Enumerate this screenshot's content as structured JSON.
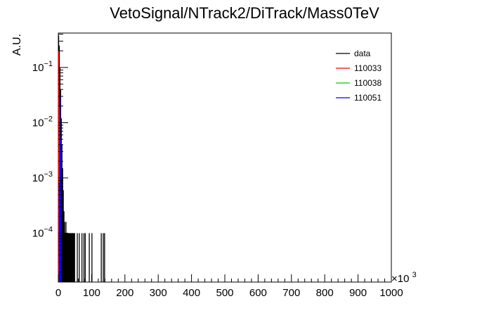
{
  "chart_data": {
    "type": "bar",
    "title": "VetoSignal/NTrack2/DiTrack/Mass0TeV",
    "xlabel": "",
    "ylabel": "A.U.",
    "x_multiplier_label": "×10",
    "x_multiplier_exponent": "3",
    "xlim": [
      0,
      1000
    ],
    "ylim": [
      1.3e-05,
      0.42
    ],
    "yscale": "log",
    "grid": false,
    "legend_position": "top-right",
    "x_tick_labels": [
      "0",
      "100",
      "200",
      "300",
      "400",
      "500",
      "600",
      "700",
      "800",
      "900",
      "1000"
    ],
    "y_tick_labels": [
      {
        "base": "10",
        "exp": "−1",
        "value": 0.1
      },
      {
        "base": "10",
        "exp": "−2",
        "value": 0.01
      },
      {
        "base": "10",
        "exp": "−3",
        "value": 0.001
      },
      {
        "base": "10",
        "exp": "−4",
        "value": 0.0001
      }
    ],
    "series": [
      {
        "name": "data",
        "color": "#000000",
        "bins": [
          {
            "x": 1,
            "y": 0.38
          },
          {
            "x": 3,
            "y": 0.25
          },
          {
            "x": 5,
            "y": 0.1
          },
          {
            "x": 7,
            "y": 0.04
          },
          {
            "x": 9,
            "y": 0.012
          },
          {
            "x": 11,
            "y": 0.004
          },
          {
            "x": 13,
            "y": 0.0015
          },
          {
            "x": 15,
            "y": 0.0006
          },
          {
            "x": 17,
            "y": 0.00025
          },
          {
            "x": 19,
            "y": 0.00016
          },
          {
            "x": 21,
            "y": 0.0001
          },
          {
            "x": 23,
            "y": 0.00016
          },
          {
            "x": 25,
            "y": 0.0001
          },
          {
            "x": 27,
            "y": 0.0001
          },
          {
            "x": 29,
            "y": 0.0001
          },
          {
            "x": 31,
            "y": 0.0001
          },
          {
            "x": 33,
            "y": 0.0001
          },
          {
            "x": 35,
            "y": 0.0001
          },
          {
            "x": 37,
            "y": 0.0001
          },
          {
            "x": 39,
            "y": 0.0001
          },
          {
            "x": 41,
            "y": 0.0001
          },
          {
            "x": 43,
            "y": 0.0001
          },
          {
            "x": 45,
            "y": 0.0001
          },
          {
            "x": 47,
            "y": 0.0001
          },
          {
            "x": 49,
            "y": 0.0001
          },
          {
            "x": 57,
            "y": 0.0001
          },
          {
            "x": 63,
            "y": 0.0001
          },
          {
            "x": 71,
            "y": 0.0001
          },
          {
            "x": 77,
            "y": 0.0001
          },
          {
            "x": 81,
            "y": 0.0001
          },
          {
            "x": 93,
            "y": 0.0001
          },
          {
            "x": 101,
            "y": 0.0001
          },
          {
            "x": 129,
            "y": 0.0001
          },
          {
            "x": 135,
            "y": 0.0001
          },
          {
            "x": 139,
            "y": 0.0001
          }
        ]
      },
      {
        "name": "110033",
        "color": "#ff0000",
        "bins": [
          {
            "x": 1,
            "y": 0.2
          },
          {
            "x": 3,
            "y": 0.02
          }
        ]
      },
      {
        "name": "110038",
        "color": "#00cc00",
        "bins": [
          {
            "x": 5,
            "y": 0.025
          },
          {
            "x": 7,
            "y": 0.0005
          }
        ]
      },
      {
        "name": "110051",
        "color": "#0000ff",
        "bins": [
          {
            "x": 3,
            "y": 0.0008
          },
          {
            "x": 5,
            "y": 0.03
          },
          {
            "x": 7,
            "y": 0.005
          },
          {
            "x": 9,
            "y": 0.0003
          }
        ]
      }
    ]
  }
}
